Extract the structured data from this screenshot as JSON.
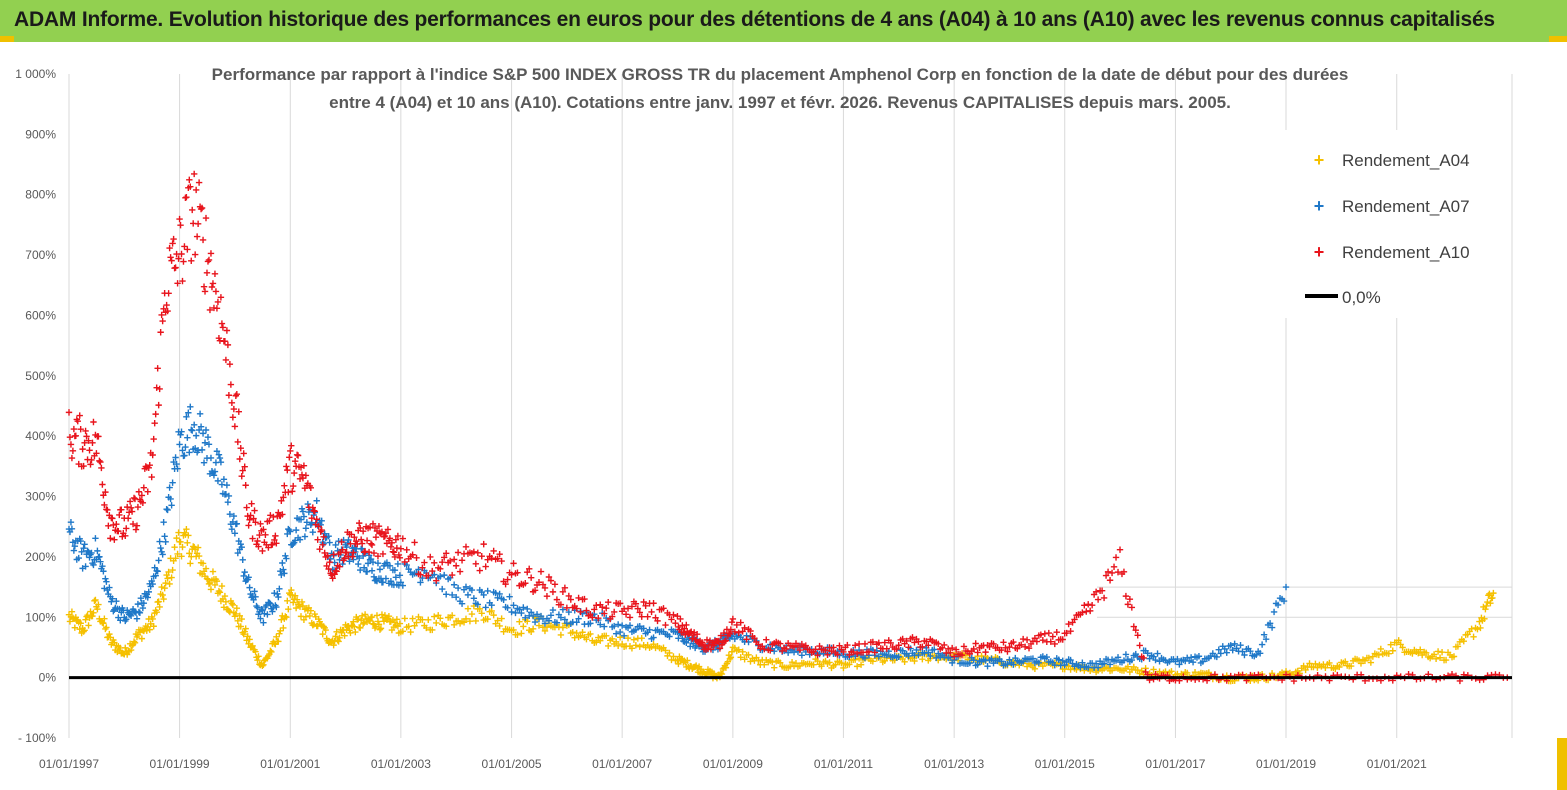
{
  "header": {
    "title": "ADAM Informe. Evolution historique des performances en euros pour des détentions de 4 ans (A04) à 10 ans (A10) avec les revenus connus capitalisés"
  },
  "colors": {
    "header_bg": "#92d050",
    "accent_marks": "#f0c000",
    "A04": "#f5c000",
    "A07": "#1f78c8",
    "A10": "#e8141c",
    "zero_line": "#000000"
  },
  "chart_data": {
    "type": "scatter",
    "title_lines": [
      "Performance par rapport à l'indice S&P 500 INDEX GROSS TR  du placement Amphenol Corp en fonction de la date de début pour des durées",
      "entre 4 (A04) et 10 ans (A10).  Cotations entre janv. 1997 et févr. 2026. Revenus  CAPITALISES depuis mars. 2005."
    ],
    "x_tick_labels": [
      "01/01/1997",
      "01/01/1999",
      "01/01/2001",
      "01/01/2003",
      "01/01/2005",
      "01/01/2007",
      "01/01/2009",
      "01/01/2011",
      "01/01/2013",
      "01/01/2015",
      "01/01/2017",
      "01/01/2019",
      "01/01/2021"
    ],
    "y_tick_labels": [
      "1 000%",
      "900%",
      "800%",
      "700%",
      "600%",
      "500%",
      "400%",
      "300%",
      "200%",
      "100%",
      "0%",
      "- 100%"
    ],
    "xlim": [
      "1997-01-01",
      "2023-02-01"
    ],
    "ylim": [
      -100,
      1000
    ],
    "grid": "vertical",
    "legend_position": "top-right",
    "series": [
      {
        "name": "Rendement_A04",
        "marker": "+",
        "color_key": "A04",
        "x": [
          "1997-01",
          "1997-04",
          "1997-07",
          "1997-10",
          "1998-01",
          "1998-04",
          "1998-07",
          "1998-10",
          "1999-01",
          "1999-04",
          "1999-07",
          "1999-10",
          "2000-01",
          "2000-04",
          "2000-07",
          "2000-10",
          "2001-01",
          "2001-04",
          "2001-07",
          "2001-10",
          "2002-01",
          "2002-04",
          "2002-07",
          "2002-10",
          "2003-01",
          "2003-07",
          "2004-01",
          "2004-07",
          "2005-01",
          "2005-07",
          "2006-01",
          "2006-07",
          "2007-01",
          "2007-07",
          "2008-01",
          "2008-04",
          "2008-07",
          "2008-10",
          "2009-01",
          "2009-07",
          "2010-01",
          "2010-07",
          "2011-01",
          "2011-07",
          "2012-01",
          "2012-07",
          "2013-01",
          "2013-07",
          "2014-01",
          "2014-07",
          "2015-01",
          "2015-07",
          "2016-01",
          "2016-07",
          "2017-01",
          "2017-07",
          "2018-01",
          "2018-07",
          "2019-01",
          "2019-07",
          "2020-01",
          "2020-07",
          "2021-01",
          "2021-07",
          "2022-01",
          "2022-07",
          "2022-10"
        ],
        "y": [
          100,
          80,
          120,
          60,
          40,
          70,
          90,
          150,
          230,
          210,
          170,
          140,
          110,
          60,
          20,
          60,
          130,
          110,
          90,
          60,
          80,
          90,
          95,
          90,
          85,
          90,
          100,
          110,
          80,
          90,
          80,
          60,
          60,
          55,
          30,
          20,
          10,
          0,
          45,
          25,
          20,
          25,
          20,
          30,
          30,
          35,
          35,
          30,
          25,
          20,
          20,
          15,
          15,
          10,
          5,
          5,
          0,
          0,
          5,
          20,
          20,
          30,
          55,
          40,
          35,
          90,
          140
        ]
      },
      {
        "name": "Rendement_A07",
        "marker": "+",
        "color_key": "A07",
        "x": [
          "1997-01",
          "1997-04",
          "1997-07",
          "1997-10",
          "1998-01",
          "1998-04",
          "1998-07",
          "1998-10",
          "1999-01",
          "1999-04",
          "1999-07",
          "1999-10",
          "2000-01",
          "2000-04",
          "2000-07",
          "2000-10",
          "2001-01",
          "2001-04",
          "2001-07",
          "2001-10",
          "2002-01",
          "2002-04",
          "2002-07",
          "2002-10",
          "2003-01",
          "2003-07",
          "2004-01",
          "2004-07",
          "2005-01",
          "2005-07",
          "2006-01",
          "2006-07",
          "2007-01",
          "2007-07",
          "2008-01",
          "2008-04",
          "2008-07",
          "2008-10",
          "2009-01",
          "2009-07",
          "2010-01",
          "2010-07",
          "2011-01",
          "2011-07",
          "2012-01",
          "2012-07",
          "2013-01",
          "2013-07",
          "2014-01",
          "2014-07",
          "2015-01",
          "2015-07",
          "2016-01",
          "2016-07",
          "2017-01",
          "2017-07",
          "2018-01",
          "2018-07",
          "2019-01"
        ],
        "y": [
          240,
          200,
          210,
          130,
          100,
          110,
          150,
          250,
          390,
          420,
          380,
          330,
          250,
          150,
          100,
          130,
          240,
          260,
          270,
          200,
          210,
          200,
          180,
          175,
          170,
          180,
          140,
          130,
          120,
          100,
          100,
          100,
          80,
          75,
          70,
          60,
          50,
          55,
          70,
          55,
          45,
          45,
          40,
          40,
          40,
          45,
          30,
          25,
          25,
          30,
          25,
          20,
          30,
          40,
          25,
          30,
          50,
          40,
          150
        ]
      },
      {
        "name": "Rendement_A10",
        "marker": "+",
        "color_key": "A10",
        "x": [
          "1997-01",
          "1997-04",
          "1997-07",
          "1997-10",
          "1998-01",
          "1998-04",
          "1998-07",
          "1998-10",
          "1999-01",
          "1999-04",
          "1999-07",
          "1999-10",
          "2000-01",
          "2000-04",
          "2000-07",
          "2000-10",
          "2001-01",
          "2001-04",
          "2001-07",
          "2001-10",
          "2002-01",
          "2002-04",
          "2002-07",
          "2002-10",
          "2003-01",
          "2003-07",
          "2004-01",
          "2004-07",
          "2005-01",
          "2005-07",
          "2006-01",
          "2006-07",
          "2007-01",
          "2007-07",
          "2008-01",
          "2008-04",
          "2008-07",
          "2008-10",
          "2009-01",
          "2009-07",
          "2010-01",
          "2010-07",
          "2011-01",
          "2011-07",
          "2012-01",
          "2012-07",
          "2013-01",
          "2013-07",
          "2014-01",
          "2014-07",
          "2015-01",
          "2015-07",
          "2016-01",
          "2016-07",
          "2017-01",
          "2018-01",
          "2019-01",
          "2020-01",
          "2021-01",
          "2022-01",
          "2023-01"
        ],
        "y": [
          400,
          390,
          390,
          260,
          250,
          280,
          350,
          650,
          700,
          780,
          700,
          600,
          450,
          270,
          230,
          250,
          350,
          330,
          250,
          180,
          220,
          230,
          230,
          220,
          220,
          180,
          190,
          200,
          170,
          160,
          130,
          110,
          110,
          115,
          90,
          70,
          55,
          55,
          90,
          55,
          50,
          45,
          45,
          50,
          55,
          60,
          40,
          50,
          50,
          60,
          70,
          120,
          190,
          0,
          0,
          0,
          0,
          0,
          0,
          0,
          0
        ]
      },
      {
        "name": "0,0%",
        "marker": "line",
        "color_key": "zero_line",
        "x": [
          "1997-01-01",
          "2023-02-01"
        ],
        "y": [
          0,
          0
        ]
      }
    ]
  }
}
